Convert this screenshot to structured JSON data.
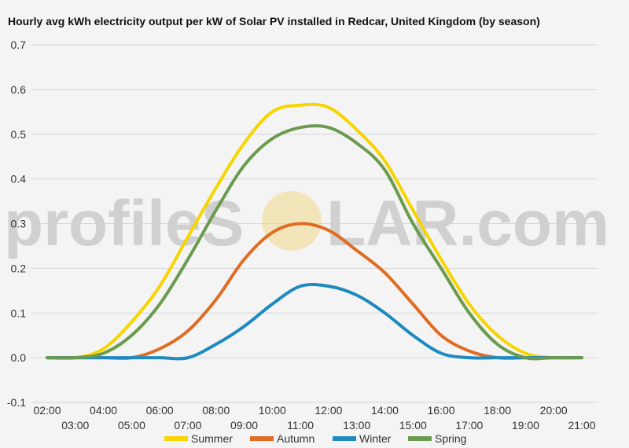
{
  "chart_data": {
    "type": "line",
    "title": "Hourly avg kWh electricity output per kW of Solar PV installed in Redcar, United Kingdom (by season)",
    "xlabel": "",
    "ylabel": "",
    "ylim": [
      -0.1,
      0.7
    ],
    "yticks": [
      "0.7",
      "0.6",
      "0.5",
      "0.4",
      "0.3",
      "0.2",
      "0.1",
      "0.0",
      "-0.1"
    ],
    "x": [
      "02:00",
      "03:00",
      "04:00",
      "05:00",
      "06:00",
      "07:00",
      "08:00",
      "09:00",
      "10:00",
      "11:00",
      "12:00",
      "13:00",
      "14:00",
      "15:00",
      "16:00",
      "17:00",
      "18:00",
      "19:00",
      "20:00",
      "21:00"
    ],
    "grid": true,
    "legend_position": "bottom",
    "series": [
      {
        "name": "Summer",
        "color": "#f6d500",
        "values": [
          0,
          0,
          0.02,
          0.08,
          0.16,
          0.27,
          0.38,
          0.48,
          0.55,
          0.565,
          0.56,
          0.51,
          0.44,
          0.33,
          0.22,
          0.12,
          0.05,
          0.01,
          0,
          0
        ]
      },
      {
        "name": "Autumn",
        "color": "#e06c23",
        "values": [
          0,
          0,
          0,
          0,
          0.02,
          0.06,
          0.13,
          0.22,
          0.28,
          0.3,
          0.285,
          0.24,
          0.19,
          0.12,
          0.05,
          0.015,
          0,
          0,
          0,
          0
        ]
      },
      {
        "name": "Winter",
        "color": "#1f8ac0",
        "values": [
          0,
          0,
          0,
          0,
          0,
          0,
          0.03,
          0.07,
          0.12,
          0.16,
          0.16,
          0.14,
          0.1,
          0.05,
          0.01,
          0,
          0,
          0,
          0,
          0
        ]
      },
      {
        "name": "Spring",
        "color": "#6b9b4e",
        "values": [
          0,
          0,
          0.01,
          0.05,
          0.12,
          0.22,
          0.33,
          0.43,
          0.49,
          0.515,
          0.515,
          0.48,
          0.42,
          0.3,
          0.2,
          0.1,
          0.03,
          0,
          0,
          0
        ]
      }
    ]
  },
  "watermark": {
    "text_left": "profileS",
    "text_right": "LAR.com",
    "sun_color": "#f3d98a"
  }
}
